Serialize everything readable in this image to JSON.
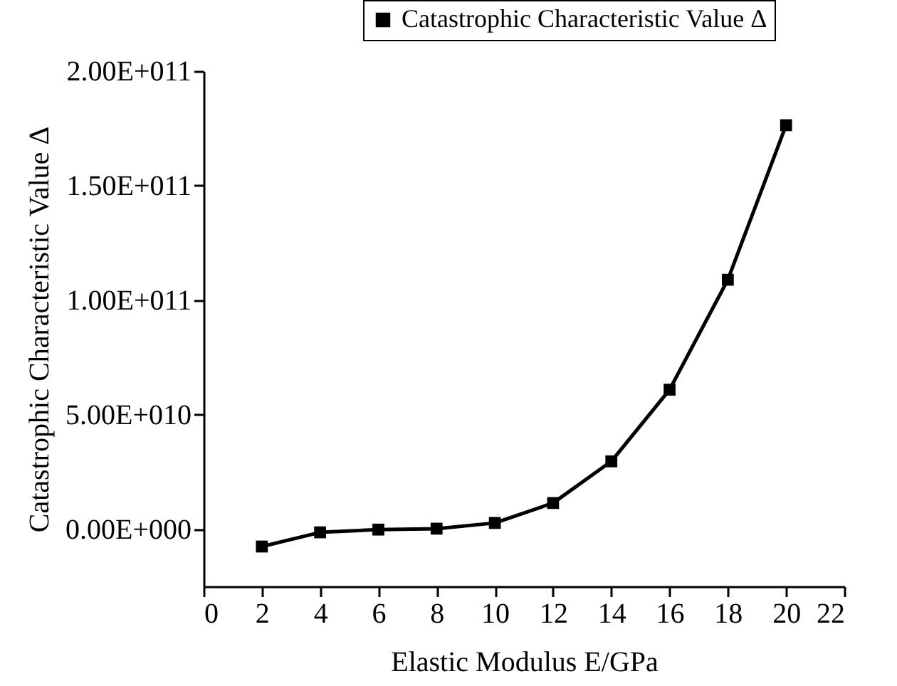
{
  "chart_data": {
    "type": "line",
    "xlabel": "Elastic Modulus E/GPa",
    "ylabel": "Catastrophic Characteristic Value Δ",
    "x": [
      2,
      4,
      6,
      8,
      10,
      12,
      14,
      16,
      18,
      20
    ],
    "series": [
      {
        "name": "Catastrophic Characteristic Value Δ",
        "color": "#000000",
        "values": [
          -7600000000.0,
          -1400000000.0,
          -200000000.0,
          200000000.0,
          2700000000.0,
          11400000000.0,
          29600000000.0,
          60900000000.0,
          108900000000.0,
          176400000000.0
        ]
      }
    ],
    "xlim": [
      0,
      22
    ],
    "xticks": [
      0,
      2,
      4,
      6,
      8,
      10,
      12,
      14,
      16,
      18,
      20,
      22
    ],
    "ylim": [
      -25000000000,
      200000000000
    ],
    "yticks": [
      {
        "value": 0,
        "label": "0.00E+000"
      },
      {
        "value": 50000000000,
        "label": "5.00E+010"
      },
      {
        "value": 100000000000,
        "label": "1.00E+011"
      },
      {
        "value": 150000000000,
        "label": "1.50E+011"
      },
      {
        "value": 200000000000,
        "label": "2.00E+011"
      }
    ],
    "grid": false,
    "legend": "top right",
    "marker": "square",
    "line_style": "solid"
  }
}
